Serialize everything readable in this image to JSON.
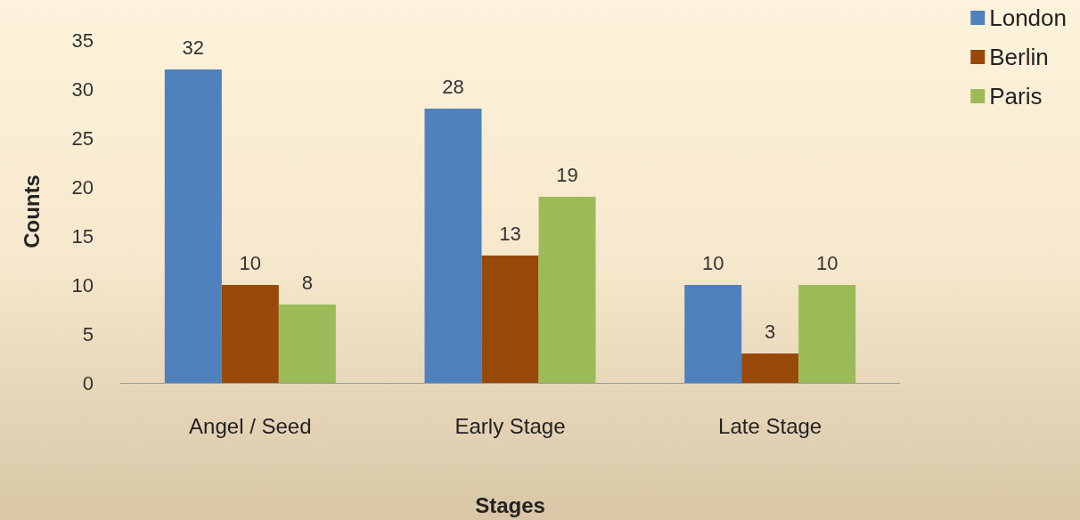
{
  "chart_data": {
    "type": "bar",
    "xlabel": "Stages",
    "ylabel": "Counts",
    "categories": [
      "Angel / Seed",
      "Early Stage",
      "Late Stage"
    ],
    "series": [
      {
        "name": "London",
        "color": "#4f81bd",
        "values": [
          32,
          28,
          10
        ]
      },
      {
        "name": "Berlin",
        "color": "#984807",
        "values": [
          10,
          13,
          3
        ]
      },
      {
        "name": "Paris",
        "color": "#9bbb59",
        "values": [
          8,
          19,
          10
        ]
      }
    ],
    "ylim": [
      0,
      35
    ],
    "yticks": [
      0,
      5,
      10,
      15,
      20,
      25,
      30,
      35
    ],
    "grid": false,
    "legend": "top right",
    "data_labels": true
  }
}
